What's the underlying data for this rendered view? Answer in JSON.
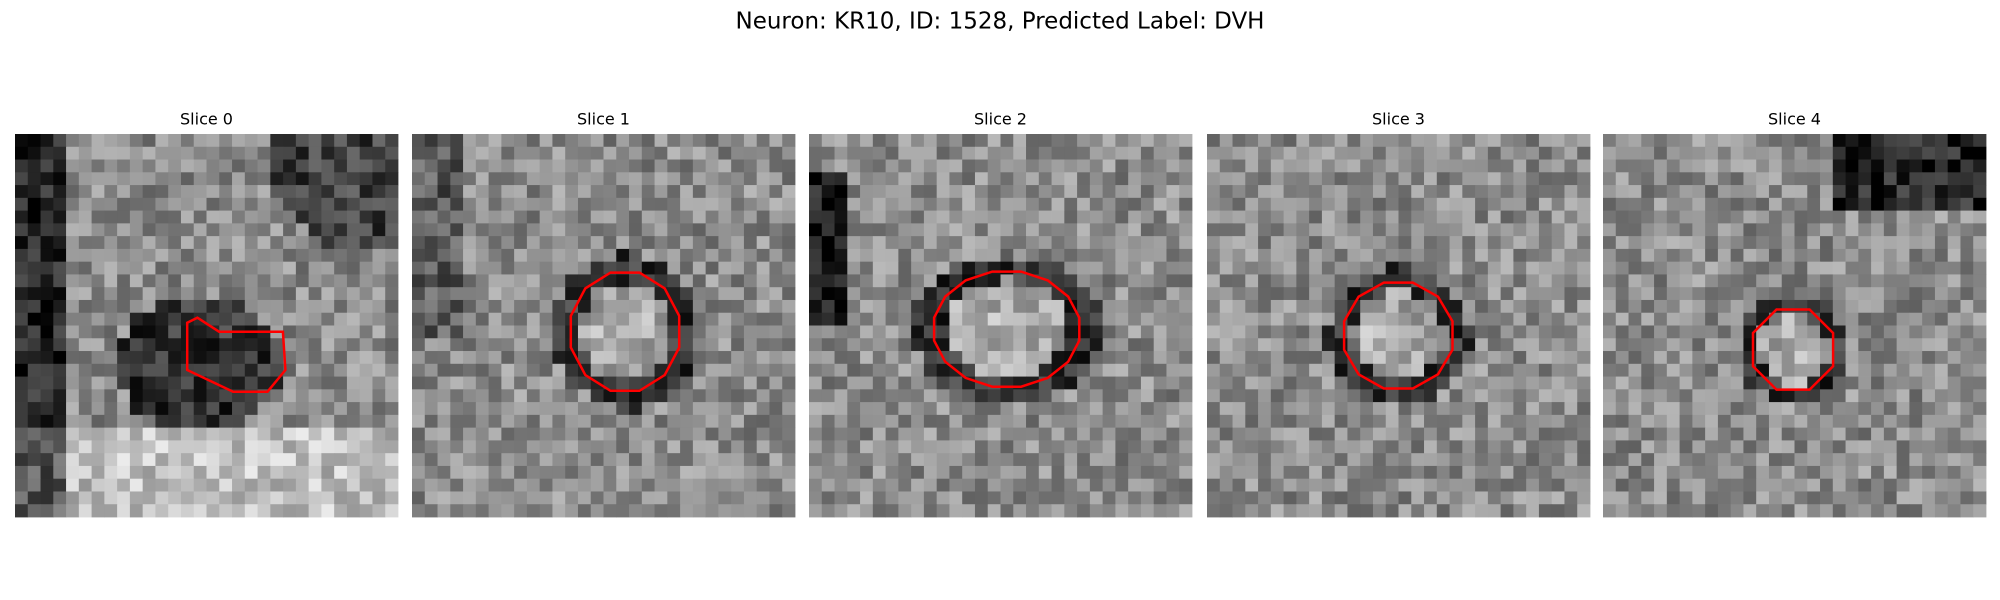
{
  "title": "Neuron: KR10, ID: 1528, Predicted Label: DVH",
  "panels": [
    {
      "title": "Slice 0"
    },
    {
      "title": "Slice 1"
    },
    {
      "title": "Slice 2"
    },
    {
      "title": "Slice 3"
    },
    {
      "title": "Slice 4"
    }
  ]
}
